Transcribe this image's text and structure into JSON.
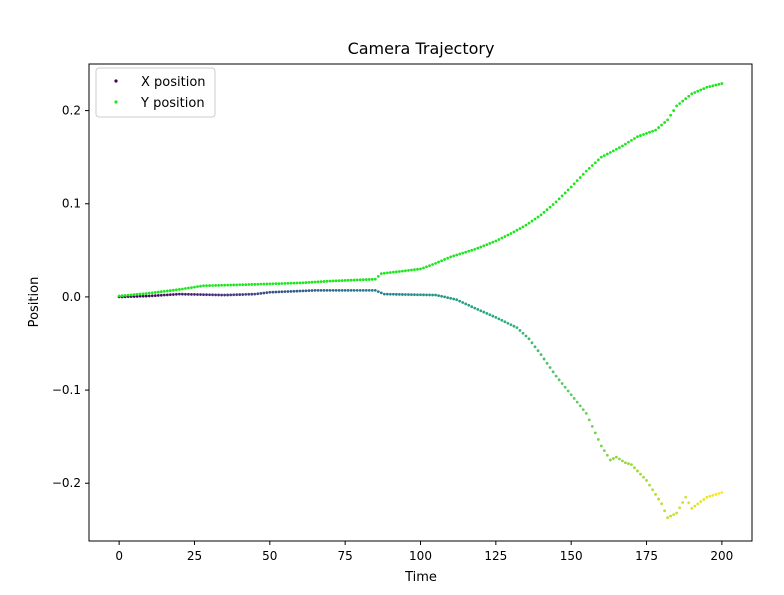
{
  "chart_data": {
    "type": "scatter",
    "title": "Camera Trajectory",
    "xlabel": "Time",
    "ylabel": "Position",
    "xlim": [
      -10,
      210
    ],
    "ylim": [
      -0.262,
      0.25
    ],
    "xticks": [
      0,
      25,
      50,
      75,
      100,
      125,
      150,
      175,
      200
    ],
    "xtick_labels": [
      "0",
      "25",
      "50",
      "75",
      "100",
      "125",
      "150",
      "175",
      "200"
    ],
    "yticks": [
      -0.2,
      -0.1,
      0.0,
      0.1,
      0.2
    ],
    "ytick_labels": [
      "−0.2",
      "−0.1",
      "0.0",
      "0.1",
      "0.2"
    ],
    "grid": false,
    "legend_position": "top-left",
    "colors": {
      "x_colormap": "viridis",
      "y_series": "#1ee61e"
    },
    "series": [
      {
        "name": "X position",
        "marker_color": "viridis-by-time",
        "keypoints": [
          [
            0,
            0.0
          ],
          [
            10,
            0.001
          ],
          [
            20,
            0.003
          ],
          [
            35,
            0.002
          ],
          [
            45,
            0.003
          ],
          [
            50,
            0.005
          ],
          [
            65,
            0.007
          ],
          [
            85,
            0.007
          ],
          [
            88,
            0.003
          ],
          [
            105,
            0.002
          ],
          [
            108,
            0.0
          ],
          [
            112,
            -0.003
          ],
          [
            118,
            -0.012
          ],
          [
            125,
            -0.022
          ],
          [
            132,
            -0.033
          ],
          [
            136,
            -0.045
          ],
          [
            140,
            -0.062
          ],
          [
            145,
            -0.085
          ],
          [
            150,
            -0.105
          ],
          [
            155,
            -0.125
          ],
          [
            160,
            -0.16
          ],
          [
            163,
            -0.175
          ],
          [
            165,
            -0.172
          ],
          [
            168,
            -0.178
          ],
          [
            170,
            -0.18
          ],
          [
            175,
            -0.197
          ],
          [
            180,
            -0.222
          ],
          [
            182,
            -0.237
          ],
          [
            185,
            -0.232
          ],
          [
            188,
            -0.215
          ],
          [
            190,
            -0.227
          ],
          [
            195,
            -0.215
          ],
          [
            200,
            -0.21
          ]
        ]
      },
      {
        "name": "Y position",
        "marker_color": "#1ee61e",
        "keypoints": [
          [
            0,
            0.001
          ],
          [
            10,
            0.004
          ],
          [
            20,
            0.008
          ],
          [
            28,
            0.012
          ],
          [
            40,
            0.013
          ],
          [
            50,
            0.014
          ],
          [
            60,
            0.015
          ],
          [
            70,
            0.017
          ],
          [
            85,
            0.019
          ],
          [
            87,
            0.025
          ],
          [
            100,
            0.03
          ],
          [
            105,
            0.036
          ],
          [
            110,
            0.043
          ],
          [
            118,
            0.051
          ],
          [
            125,
            0.06
          ],
          [
            130,
            0.068
          ],
          [
            135,
            0.077
          ],
          [
            140,
            0.088
          ],
          [
            145,
            0.102
          ],
          [
            150,
            0.118
          ],
          [
            155,
            0.135
          ],
          [
            160,
            0.15
          ],
          [
            163,
            0.155
          ],
          [
            167,
            0.162
          ],
          [
            172,
            0.172
          ],
          [
            178,
            0.179
          ],
          [
            182,
            0.19
          ],
          [
            185,
            0.205
          ],
          [
            190,
            0.218
          ],
          [
            195,
            0.225
          ],
          [
            200,
            0.229
          ]
        ]
      }
    ]
  }
}
